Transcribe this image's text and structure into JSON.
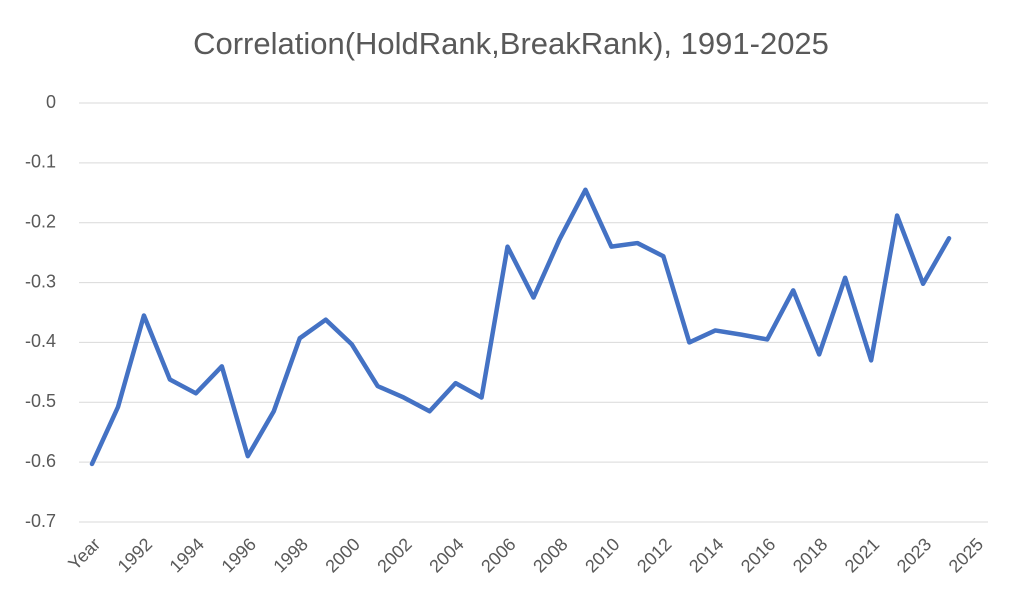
{
  "chart_data": {
    "type": "line",
    "title": "Correlation(HoldRank,BreakRank), 1991-2025",
    "categories": [
      "Year",
      null,
      "1992",
      null,
      "1994",
      null,
      "1996",
      null,
      "1998",
      null,
      "2000",
      null,
      "2002",
      null,
      "2004",
      null,
      "2006",
      null,
      "2008",
      null,
      "2010",
      null,
      "2012",
      null,
      "2014",
      null,
      "2016",
      null,
      "2018",
      null,
      "2021",
      null,
      "2023",
      null,
      "2025"
    ],
    "values": [
      -0.603,
      -0.508,
      -0.355,
      -0.462,
      -0.485,
      -0.44,
      -0.59,
      -0.515,
      -0.393,
      -0.362,
      -0.403,
      -0.473,
      -0.492,
      -0.515,
      -0.468,
      -0.492,
      -0.24,
      -0.325,
      -0.228,
      -0.145,
      -0.24,
      -0.234,
      -0.256,
      -0.4,
      -0.38,
      -0.387,
      -0.395,
      -0.313,
      -0.42,
      -0.292,
      -0.43,
      -0.188,
      -0.302,
      -0.226,
      null
    ],
    "color": "#4472c4",
    "ylim": [
      -0.7,
      0
    ],
    "yticks": [
      0,
      -0.1,
      -0.2,
      -0.3,
      -0.4,
      -0.5,
      -0.6,
      -0.7
    ],
    "grid": true
  }
}
